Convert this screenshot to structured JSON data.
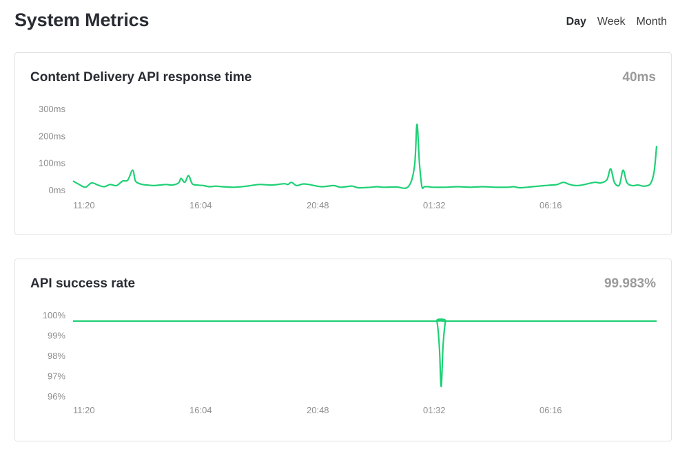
{
  "header": {
    "title": "System Metrics",
    "ranges": [
      {
        "label": "Day",
        "active": true
      },
      {
        "label": "Week",
        "active": false
      },
      {
        "label": "Month",
        "active": false
      }
    ]
  },
  "colors": {
    "line": "#1ed075",
    "muted": "#9a9a9a"
  },
  "cards": [
    {
      "title": "Content Delivery API response time",
      "value": "40ms"
    },
    {
      "title": "API success rate",
      "value": "99.983%"
    }
  ],
  "chart_data": [
    {
      "type": "line",
      "y_ticks": [
        "300ms",
        "200ms",
        "100ms",
        "0ms"
      ],
      "y_tick_values": [
        300,
        200,
        100,
        0
      ],
      "x_tick_labels": [
        "11:20",
        "16:04",
        "20:48",
        "01:32",
        "06:16"
      ],
      "ylim": [
        0,
        300
      ],
      "grid": false,
      "x": [
        0,
        0.5,
        1,
        1.5,
        2,
        2.5,
        3,
        3.5,
        4,
        4.4,
        4.8,
        5,
        5.2,
        5.6,
        6,
        6.5,
        7,
        7.5,
        8,
        8.5,
        8.7,
        9,
        9.3,
        9.6,
        10,
        10.5,
        11,
        11.5,
        12,
        13,
        14,
        15,
        16,
        17,
        17.3,
        17.6,
        18,
        18.5,
        19,
        20,
        21,
        21.5,
        22,
        22.5,
        23,
        24,
        24.5,
        25,
        26,
        27,
        27.5,
        27.7,
        27.9,
        28.1,
        28.3,
        28.6,
        29,
        30,
        31,
        32,
        33,
        34,
        35,
        35.5,
        36,
        37,
        38,
        38.5,
        39,
        39.5,
        40,
        40.5,
        41,
        42,
        42.5,
        43,
        43.3,
        43.6,
        44,
        44.3,
        44.6,
        45,
        45.5,
        46,
        46.5,
        46.8,
        47
      ],
      "y": [
        35,
        22,
        12,
        28,
        20,
        14,
        22,
        18,
        35,
        38,
        75,
        38,
        28,
        22,
        20,
        18,
        20,
        22,
        20,
        28,
        45,
        30,
        55,
        25,
        20,
        18,
        14,
        16,
        14,
        12,
        16,
        22,
        20,
        25,
        22,
        30,
        18,
        24,
        22,
        14,
        18,
        12,
        14,
        16,
        10,
        12,
        14,
        12,
        13,
        14,
        90,
        245,
        100,
        14,
        14,
        14,
        12,
        12,
        14,
        12,
        14,
        12,
        12,
        14,
        10,
        14,
        18,
        20,
        22,
        30,
        22,
        18,
        20,
        30,
        28,
        40,
        80,
        30,
        20,
        75,
        30,
        18,
        20,
        16,
        25,
        70,
        165
      ]
    },
    {
      "type": "line",
      "y_ticks": [
        "100%",
        "99%",
        "98%",
        "97%",
        "96%"
      ],
      "y_tick_values": [
        100,
        99,
        98,
        97,
        96
      ],
      "x_tick_labels": [
        "11:20",
        "16:04",
        "20:48",
        "01:32",
        "06:16"
      ],
      "ylim": [
        96,
        100
      ],
      "grid": false,
      "x": [
        0,
        10,
        20,
        29,
        29.3,
        29.5,
        29.65,
        29.8,
        30,
        30.2,
        40,
        47
      ],
      "y": [
        99.73,
        99.73,
        99.73,
        99.73,
        99.73,
        98.5,
        96.5,
        98.5,
        99.73,
        99.73,
        99.73,
        99.73
      ]
    }
  ]
}
